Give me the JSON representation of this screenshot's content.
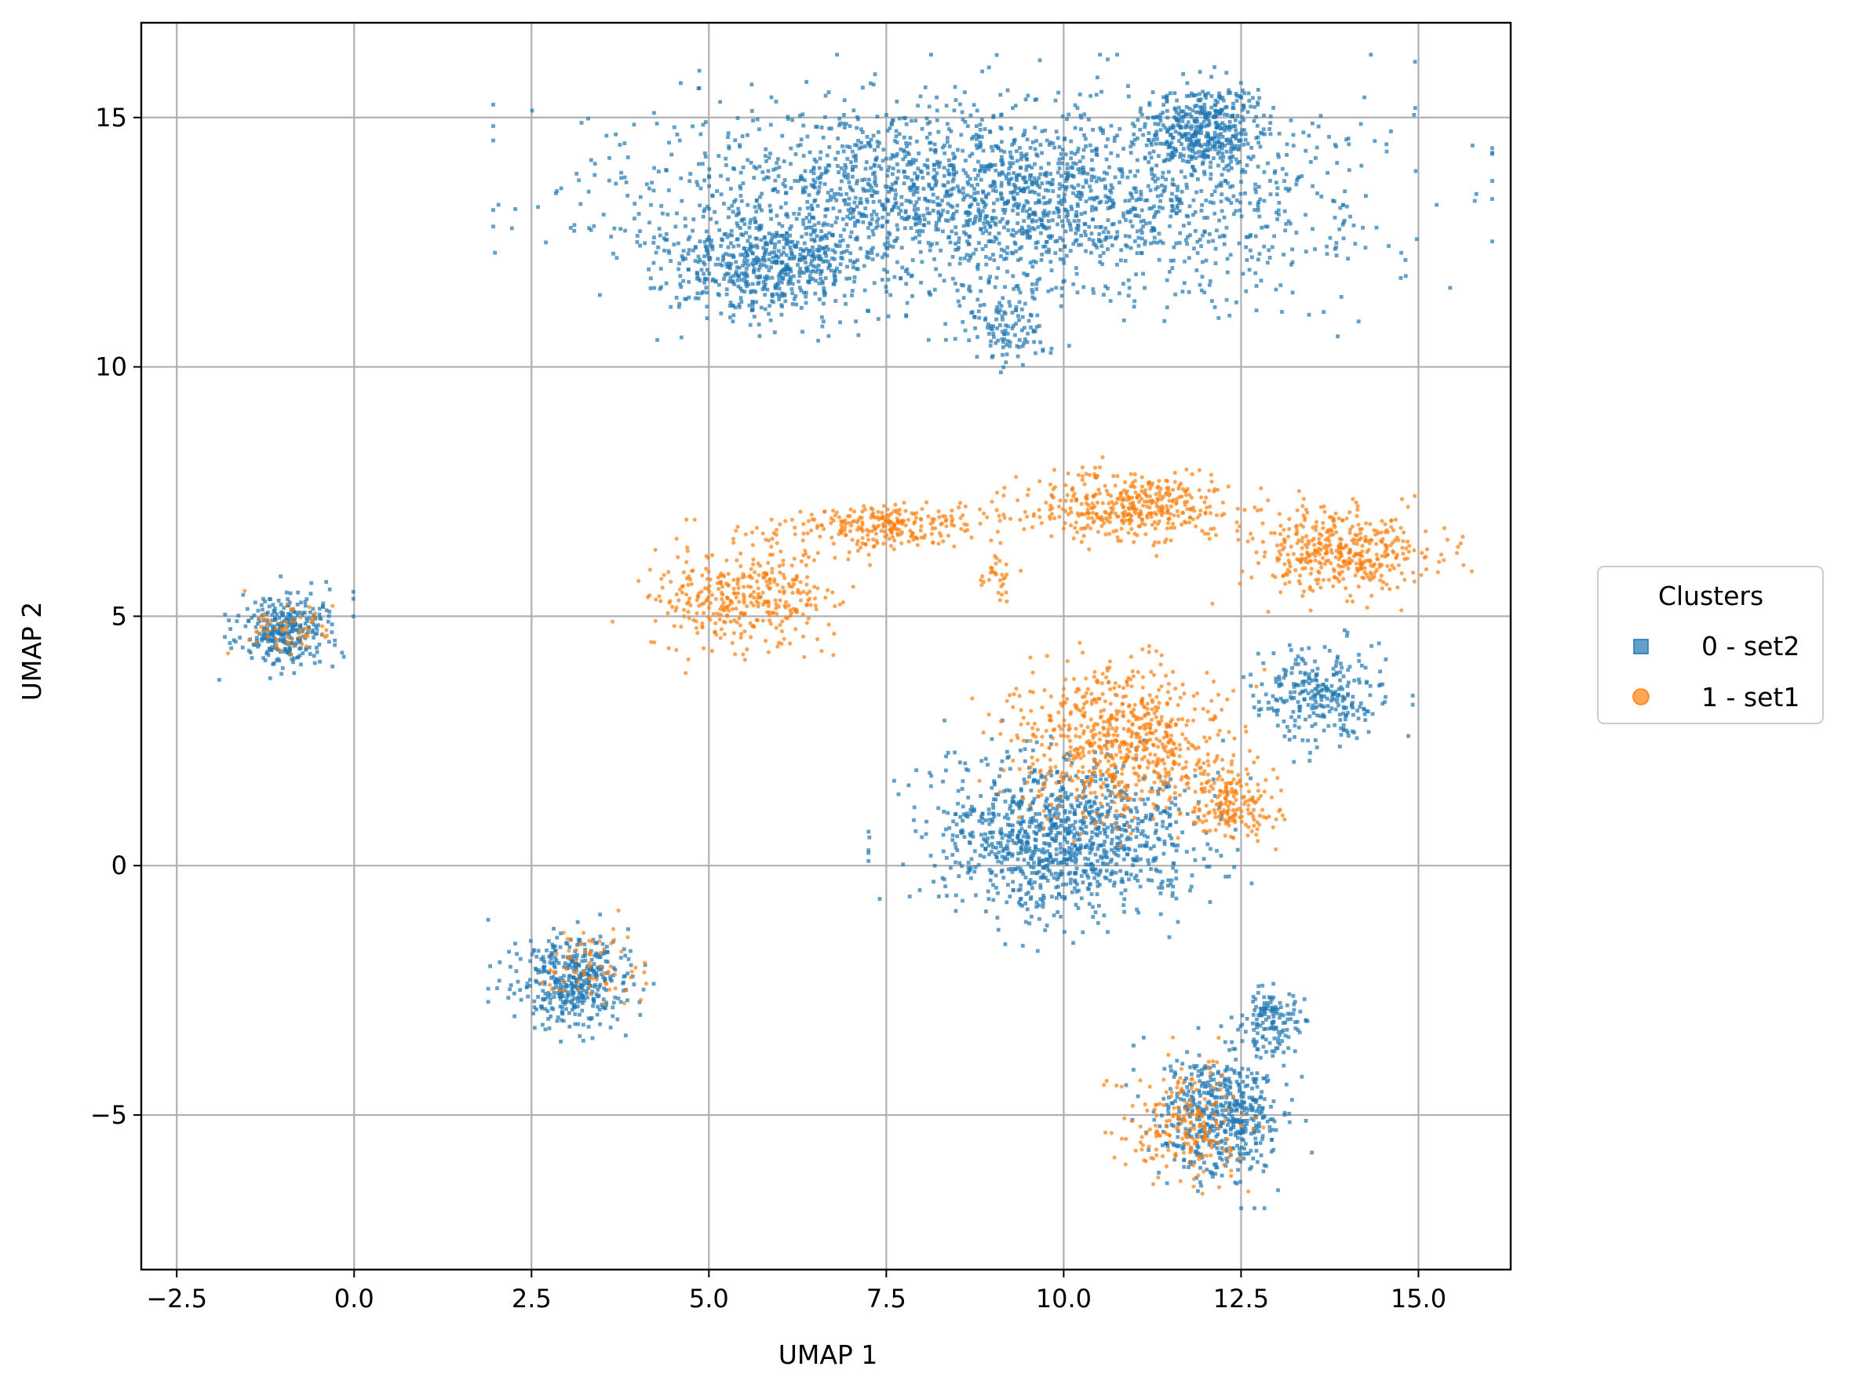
{
  "chart_data": {
    "type": "scatter",
    "title": "",
    "xlabel": "UMAP 1",
    "ylabel": "UMAP 2",
    "xlim": [
      -3.0,
      16.3
    ],
    "ylim": [
      -8.1,
      16.9
    ],
    "grid": true,
    "x_ticks": [
      -2.5,
      0.0,
      2.5,
      5.0,
      7.5,
      10.0,
      12.5,
      15.0
    ],
    "x_tick_labels": [
      "−2.5",
      "0.0",
      "2.5",
      "5.0",
      "7.5",
      "10.0",
      "12.5",
      "15.0"
    ],
    "y_ticks": [
      -5,
      0,
      5,
      10,
      15
    ],
    "y_tick_labels": [
      "−5",
      "0",
      "5",
      "10",
      "15"
    ],
    "legend": {
      "title": "Clusters",
      "placement": "outside-right",
      "entries": [
        {
          "label": "0 - set2",
          "marker": "square",
          "color": "#1f77b4"
        },
        {
          "label": "1 - set1",
          "marker": "circle",
          "color": "#ff7f0e"
        }
      ]
    },
    "series": [
      {
        "name": "0 - set2",
        "marker": "square",
        "color": "#1f77b4",
        "alpha": 0.7,
        "clusters": [
          {
            "cx": 9.0,
            "cy": 13.4,
            "sx": 3.2,
            "sy": 1.3,
            "n": 2300
          },
          {
            "cx": 12.0,
            "cy": 14.8,
            "sx": 0.55,
            "sy": 0.55,
            "n": 400
          },
          {
            "cx": 5.8,
            "cy": 12.0,
            "sx": 0.9,
            "sy": 0.7,
            "n": 550
          },
          {
            "cx": 9.3,
            "cy": 10.8,
            "sx": 0.4,
            "sy": 0.55,
            "n": 120
          },
          {
            "cx": 10.0,
            "cy": 0.6,
            "sx": 1.25,
            "sy": 1.05,
            "n": 1100
          },
          {
            "cx": 13.6,
            "cy": 3.4,
            "sx": 0.6,
            "sy": 0.6,
            "n": 280
          },
          {
            "cx": 12.2,
            "cy": -5.0,
            "sx": 0.6,
            "sy": 0.85,
            "n": 520
          },
          {
            "cx": 12.9,
            "cy": -3.1,
            "sx": 0.3,
            "sy": 0.5,
            "n": 140
          },
          {
            "cx": 3.1,
            "cy": -2.3,
            "sx": 0.55,
            "sy": 0.6,
            "n": 420
          },
          {
            "cx": -1.0,
            "cy": 4.7,
            "sx": 0.45,
            "sy": 0.5,
            "n": 320
          }
        ]
      },
      {
        "name": "1 - set1",
        "marker": "circle",
        "color": "#ff7f0e",
        "alpha": 0.7,
        "clusters": [
          {
            "cx": 5.4,
            "cy": 5.4,
            "sx": 0.85,
            "sy": 0.7,
            "n": 380
          },
          {
            "cx": 7.5,
            "cy": 6.8,
            "sx": 0.9,
            "sy": 0.3,
            "n": 260
          },
          {
            "cx": 10.9,
            "cy": 7.2,
            "sx": 0.9,
            "sy": 0.45,
            "n": 420
          },
          {
            "cx": 13.9,
            "cy": 6.3,
            "sx": 0.85,
            "sy": 0.55,
            "n": 420
          },
          {
            "cx": 10.8,
            "cy": 2.5,
            "sx": 0.95,
            "sy": 1.0,
            "n": 700
          },
          {
            "cx": 12.4,
            "cy": 1.2,
            "sx": 0.45,
            "sy": 0.45,
            "n": 180
          },
          {
            "cx": 11.7,
            "cy": -5.2,
            "sx": 0.6,
            "sy": 0.8,
            "n": 200
          },
          {
            "cx": 3.4,
            "cy": -2.0,
            "sx": 0.5,
            "sy": 0.5,
            "n": 70
          },
          {
            "cx": -1.0,
            "cy": 4.8,
            "sx": 0.4,
            "sy": 0.4,
            "n": 60
          },
          {
            "cx": 9.1,
            "cy": 5.8,
            "sx": 0.15,
            "sy": 0.3,
            "n": 30
          }
        ]
      }
    ]
  }
}
